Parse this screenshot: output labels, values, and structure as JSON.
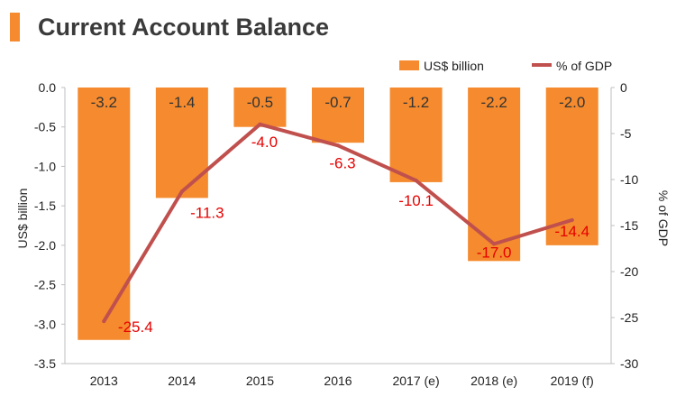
{
  "chart_data": {
    "type": "bar",
    "title": "Current Account Balance",
    "categories": [
      "2013",
      "2014",
      "2015",
      "2016",
      "2017 (e)",
      "2018 (e)",
      "2019 (f)"
    ],
    "series": [
      {
        "name": "US$ billion",
        "type": "bar",
        "axis": "left",
        "color": "#f58b2e",
        "values": [
          -3.2,
          -1.4,
          -0.5,
          -0.7,
          -1.2,
          -2.2,
          -2.0
        ],
        "labels": [
          "-3.2",
          "-1.4",
          "-0.5",
          "-0.7",
          "-1.2",
          "-2.2",
          "-2.0"
        ]
      },
      {
        "name": "% of GDP",
        "type": "line",
        "axis": "right",
        "color": "#c0504d",
        "label_color": "#e60000",
        "values": [
          -25.4,
          -11.3,
          -4.0,
          -6.3,
          -10.1,
          -17.0,
          -14.4
        ],
        "labels": [
          "-25.4",
          "-11.3",
          "-4.0",
          "-6.3",
          "-10.1",
          "-17.0",
          "-14.4"
        ]
      }
    ],
    "ylabel": "US$ billion",
    "ylim": [
      -3.5,
      0.0
    ],
    "yticks": [
      "0.0",
      "-0.5",
      "-1.0",
      "-1.5",
      "-2.0",
      "-2.5",
      "-3.0",
      "-3.5"
    ],
    "ytick_values": [
      0.0,
      -0.5,
      -1.0,
      -1.5,
      -2.0,
      -2.5,
      -3.0,
      -3.5
    ],
    "y2label": "% of GDP",
    "y2lim": [
      -30,
      0
    ],
    "y2ticks": [
      "0",
      "-5",
      "-10",
      "-15",
      "-20",
      "-25",
      "-30"
    ],
    "y2tick_values": [
      0,
      -5,
      -10,
      -15,
      -20,
      -25,
      -30
    ],
    "grid": false,
    "legend": "top-right",
    "accent_color": "#f58b2e"
  }
}
